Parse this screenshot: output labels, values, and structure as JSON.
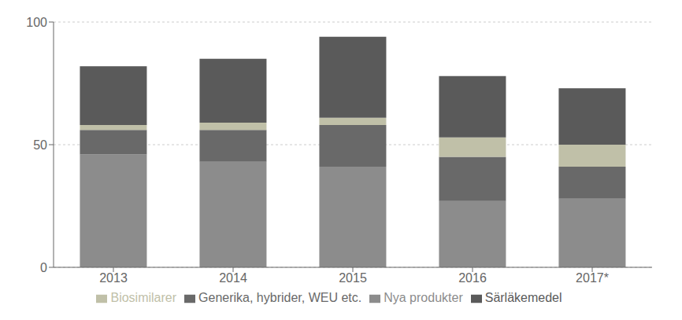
{
  "chart_data": {
    "type": "bar",
    "stacked": true,
    "categories": [
      "2013",
      "2014",
      "2015",
      "2016",
      "2017*"
    ],
    "series": [
      {
        "name": "Nya produkter",
        "color": "#8c8c8c",
        "values": [
          46,
          43,
          41,
          27,
          28
        ]
      },
      {
        "name": "Generika, hybrider, WEU  etc.",
        "color": "#696969",
        "values": [
          10,
          13,
          17,
          18,
          13
        ]
      },
      {
        "name": "Biosimilarer",
        "color": "#c0c0a8",
        "values": [
          2,
          3,
          3,
          8,
          9
        ]
      },
      {
        "name": "Särläkemedel",
        "color": "#5a5a5a",
        "values": [
          24,
          26,
          33,
          25,
          23
        ]
      }
    ],
    "ylim": [
      0,
      100
    ],
    "yticks": [
      0,
      50,
      100
    ],
    "grid": true,
    "legend": "bottom"
  }
}
